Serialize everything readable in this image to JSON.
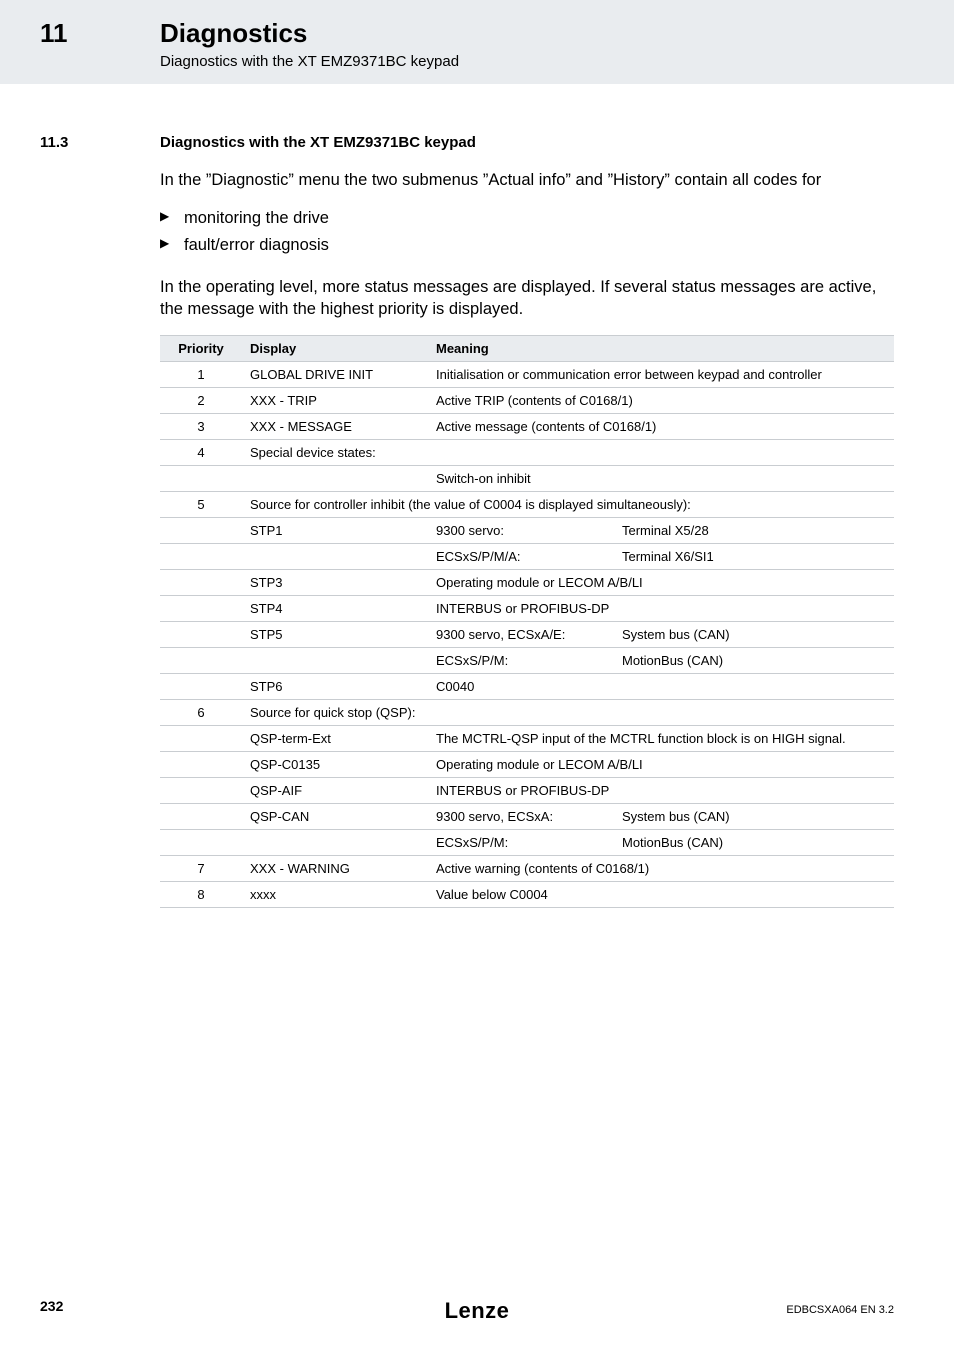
{
  "header": {
    "chapter_number": "11",
    "chapter_title": "Diagnostics",
    "chapter_subtitle": "Diagnostics with the XT EMZ9371BC keypad"
  },
  "section": {
    "number": "11.3",
    "title": "Diagnostics with the XT EMZ9371BC keypad"
  },
  "paragraphs": {
    "intro": "In the ”Diagnostic” menu the two submenus ”Actual info” and ”History” contain all codes for",
    "bullets": [
      "monitoring the drive",
      "fault/error diagnosis"
    ],
    "note": "In the operating level, more status messages are displayed. If several status messages are active, the message with the highest priority is displayed."
  },
  "table": {
    "headers": {
      "priority": "Priority",
      "display": "Display",
      "meaning": "Meaning"
    },
    "rows": [
      {
        "priority": "1",
        "display": "GLOBAL DRIVE INIT",
        "meaning_span": "Initialisation or communication error between keypad and controller"
      },
      {
        "priority": "2",
        "display": "XXX - TRIP",
        "meaning_span": "Active TRIP (contents of C0168/1)"
      },
      {
        "priority": "3",
        "display": "XXX - MESSAGE",
        "meaning_span": "Active message (contents of C0168/1)"
      },
      {
        "priority": "4",
        "group": "Special device states:"
      },
      {
        "priority": "",
        "display": "",
        "meaning_span": "Switch-on inhibit"
      },
      {
        "priority": "5",
        "group": "Source for controller inhibit (the value of C0004 is displayed simultaneously):"
      },
      {
        "priority": "",
        "display": "STP1",
        "meaning1": "9300 servo:",
        "meaning2": "Terminal X5/28"
      },
      {
        "priority": "",
        "display": "",
        "meaning1": "ECSxS/P/M/A:",
        "meaning2": "Terminal X6/SI1"
      },
      {
        "priority": "",
        "display": "STP3",
        "meaning_span": "Operating module or LECOM A/B/LI"
      },
      {
        "priority": "",
        "display": "STP4",
        "meaning_span": "INTERBUS or PROFIBUS-DP"
      },
      {
        "priority": "",
        "display": "STP5",
        "meaning1": "9300 servo, ECSxA/E:",
        "meaning2": "System bus (CAN)"
      },
      {
        "priority": "",
        "display": "",
        "meaning1": "ECSxS/P/M:",
        "meaning2": "MotionBus (CAN)"
      },
      {
        "priority": "",
        "display": "STP6",
        "meaning_span": "C0040"
      },
      {
        "priority": "6",
        "group": "Source for quick stop (QSP):"
      },
      {
        "priority": "",
        "display": "QSP-term-Ext",
        "meaning_span": "The MCTRL-QSP input of the MCTRL function block is on HIGH signal."
      },
      {
        "priority": "",
        "display": "QSP-C0135",
        "meaning_span": "Operating module or LECOM A/B/LI"
      },
      {
        "priority": "",
        "display": "QSP-AIF",
        "meaning_span": "INTERBUS or PROFIBUS-DP"
      },
      {
        "priority": "",
        "display": "QSP-CAN",
        "meaning1": "9300 servo, ECSxA:",
        "meaning2": "System bus (CAN)"
      },
      {
        "priority": "",
        "display": "",
        "meaning1": "ECSxS/P/M:",
        "meaning2": "MotionBus (CAN)"
      },
      {
        "priority": "7",
        "display": "XXX - WARNING",
        "meaning_span": "Active warning (contents of C0168/1)"
      },
      {
        "priority": "8",
        "display": "xxxx",
        "meaning_span": "Value below C0004"
      }
    ]
  },
  "footer": {
    "page": "232",
    "brand": "Lenze",
    "docid": "EDBCSXA064 EN 3.2"
  },
  "colors": {
    "band": "#e9ecef",
    "border": "#c9cdd1",
    "text": "#000000"
  }
}
